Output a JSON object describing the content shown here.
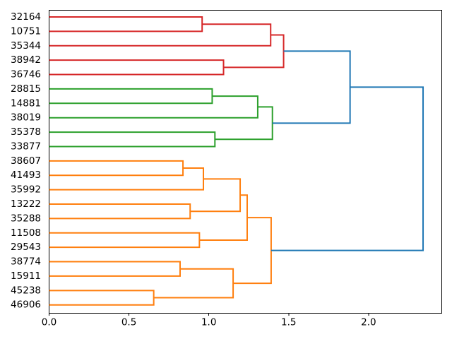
{
  "chart_data": {
    "type": "dendrogram",
    "title": "",
    "xlabel": "",
    "ylabel": "",
    "orientation": "labels-left-root-right",
    "grid": false,
    "legend": null,
    "leaves": [
      "32164",
      "10751",
      "35344",
      "38942",
      "36746",
      "28815",
      "14881",
      "38019",
      "35378",
      "33877",
      "38607",
      "41493",
      "35992",
      "13222",
      "35288",
      "11508",
      "29543",
      "38774",
      "15911",
      "45238",
      "46906"
    ],
    "links": [
      {
        "id": "R1",
        "children": [
          "32164",
          "10751"
        ],
        "height": 0.958,
        "color": "red"
      },
      {
        "id": "R3",
        "children": [
          "38942",
          "36746"
        ],
        "height": 1.092,
        "color": "red"
      },
      {
        "id": "R2",
        "children": [
          "R1",
          "35344"
        ],
        "height": 1.387,
        "color": "red"
      },
      {
        "id": "R4",
        "children": [
          "R2",
          "R3"
        ],
        "height": 1.468,
        "color": "red"
      },
      {
        "id": "G1",
        "children": [
          "28815",
          "14881"
        ],
        "height": 1.021,
        "color": "green"
      },
      {
        "id": "G3",
        "children": [
          "35378",
          "33877"
        ],
        "height": 1.038,
        "color": "green"
      },
      {
        "id": "G2",
        "children": [
          "G1",
          "38019"
        ],
        "height": 1.306,
        "color": "green"
      },
      {
        "id": "G4",
        "children": [
          "G2",
          "G3"
        ],
        "height": 1.398,
        "color": "green"
      },
      {
        "id": "O1",
        "children": [
          "38607",
          "41493"
        ],
        "height": 0.838,
        "color": "orange"
      },
      {
        "id": "O2",
        "children": [
          "O1",
          "35992"
        ],
        "height": 0.966,
        "color": "orange"
      },
      {
        "id": "O3",
        "children": [
          "13222",
          "35288"
        ],
        "height": 0.883,
        "color": "orange"
      },
      {
        "id": "O4",
        "children": [
          "O2",
          "O3"
        ],
        "height": 1.196,
        "color": "orange"
      },
      {
        "id": "O5",
        "children": [
          "11508",
          "29543"
        ],
        "height": 0.941,
        "color": "orange"
      },
      {
        "id": "O6",
        "children": [
          "O4",
          "O5"
        ],
        "height": 1.24,
        "color": "orange"
      },
      {
        "id": "O7",
        "children": [
          "38774",
          "15911"
        ],
        "height": 0.82,
        "color": "orange"
      },
      {
        "id": "O8",
        "children": [
          "45238",
          "46906"
        ],
        "height": 0.655,
        "color": "orange"
      },
      {
        "id": "O9",
        "children": [
          "O7",
          "O8"
        ],
        "height": 1.152,
        "color": "orange"
      },
      {
        "id": "O10",
        "children": [
          "O6",
          "O9"
        ],
        "height": 1.39,
        "color": "orange"
      },
      {
        "id": "B1",
        "children": [
          "R4",
          "G4"
        ],
        "height": 1.884,
        "color": "blue"
      },
      {
        "id": "B2",
        "children": [
          "B1",
          "O10"
        ],
        "height": 2.341,
        "color": "blue"
      }
    ],
    "xticks": [
      {
        "value": 0,
        "label": "0.0"
      },
      {
        "value": 0.5,
        "label": "0.5"
      },
      {
        "value": 1,
        "label": "1.0"
      },
      {
        "value": 1.5,
        "label": "1.5"
      },
      {
        "value": 2,
        "label": "2.0"
      }
    ],
    "xlim": [
      0,
      2.458
    ],
    "colors": {
      "red": "#d62728",
      "green": "#2ca02c",
      "orange": "#ff7f0e",
      "blue": "#1f77b4",
      "axis": "#000000",
      "text": "#000000",
      "background": "#ffffff"
    }
  }
}
